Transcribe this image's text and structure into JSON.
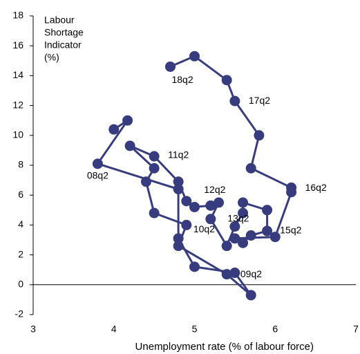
{
  "chart_data": {
    "type": "connected_scatter",
    "ylabel": [
      "Labour",
      "Shortage",
      "Indicator",
      "(%)"
    ],
    "xlabel": "Unemployment rate (% of labour force)",
    "color": "#363c7e",
    "x": [
      4.0,
      4.17,
      3.8,
      4.8,
      4.8,
      5.0,
      5.5,
      5.7,
      5.4,
      4.8,
      4.9,
      4.5,
      4.4,
      4.5,
      4.2,
      4.5,
      4.8,
      4.9,
      5.0,
      5.2,
      5.3,
      5.2,
      5.4,
      5.5,
      5.6,
      5.6,
      5.9,
      5.9,
      5.7,
      5.6,
      5.5,
      6.0,
      6.2,
      6.2,
      5.7,
      5.8,
      5.5,
      5.4,
      5.0,
      4.7
    ],
    "y": [
      10.4,
      11.0,
      8.1,
      6.4,
      3.1,
      1.2,
      0.8,
      -0.7,
      0.7,
      2.6,
      4.0,
      4.8,
      6.9,
      7.8,
      9.3,
      8.6,
      6.9,
      5.6,
      5.2,
      5.3,
      5.5,
      4.4,
      2.6,
      3.9,
      4.8,
      5.5,
      5.0,
      3.6,
      3.3,
      2.8,
      3.1,
      3.2,
      6.2,
      6.5,
      7.8,
      10.0,
      12.3,
      13.7,
      15.3,
      14.6
    ],
    "point_labels": [
      null,
      null,
      "08q2",
      null,
      null,
      null,
      "09q2",
      null,
      null,
      null,
      "10q2",
      null,
      null,
      null,
      null,
      "11q2",
      null,
      null,
      null,
      "12q2",
      null,
      null,
      null,
      "13q2",
      null,
      null,
      null,
      null,
      null,
      null,
      null,
      "15q2",
      null,
      "16q2",
      null,
      null,
      "17q2",
      null,
      null,
      "18q2"
    ],
    "xlim": [
      3,
      7
    ],
    "xticks": [
      3,
      4,
      5,
      6,
      7
    ],
    "ylim": [
      -2,
      18
    ],
    "yticks": [
      -2,
      0,
      2,
      4,
      6,
      8,
      10,
      12,
      14,
      16,
      18
    ]
  }
}
